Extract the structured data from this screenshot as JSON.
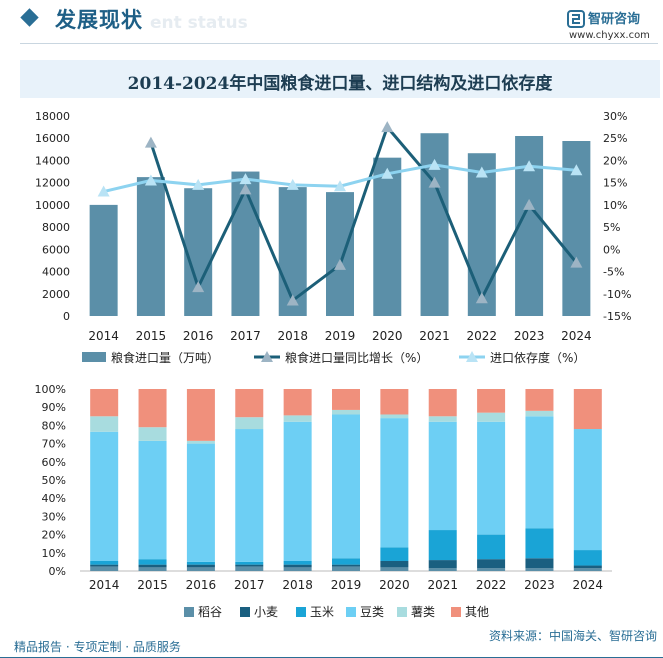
{
  "header": {
    "title": "发展现状",
    "ghost_text": "ent status"
  },
  "brand": {
    "name": "智研咨询",
    "url": "www.chyxx.com",
    "color": "#2a6e95"
  },
  "chart_title": "2014-2024年中国粮食进口量、进口结构及进口依存度",
  "footer": {
    "left": "精品报告 · 专项定制 · 品质服务",
    "right": "资料来源：中国海关、智研咨询"
  },
  "chart_data": [
    {
      "type": "bar",
      "categories": [
        "2014",
        "2015",
        "2016",
        "2017",
        "2018",
        "2019",
        "2020",
        "2021",
        "2022",
        "2023",
        "2024"
      ],
      "series": [
        {
          "name": "粮食进口量（万吨）",
          "type": "bar",
          "axis": "left",
          "color": "#5b8fa8",
          "values": [
            10000,
            12500,
            11500,
            13000,
            11600,
            11150,
            14250,
            16450,
            14650,
            16200,
            15750
          ]
        },
        {
          "name": "粮食进口量同比增长（%）",
          "type": "line",
          "axis": "right",
          "color": "#1c5f78",
          "marker_color": "#9db4c4",
          "values": [
            null,
            24,
            -8.5,
            13.5,
            -11.5,
            -3.5,
            27.5,
            15,
            -11,
            10,
            -3
          ]
        },
        {
          "name": "进口依存度（%）",
          "type": "line",
          "axis": "right",
          "color": "#8dd3f0",
          "marker_color": "#b9e3f5",
          "values": [
            13,
            15.5,
            14.5,
            15.8,
            14.5,
            14.2,
            17,
            19,
            17.3,
            18.7,
            17.8
          ]
        }
      ],
      "y_left": {
        "ylim": [
          0,
          18000
        ],
        "ticks": [
          "0",
          "2000",
          "4000",
          "6000",
          "8000",
          "10000",
          "12000",
          "14000",
          "16000",
          "18000"
        ]
      },
      "y_right": {
        "ylim": [
          -15,
          30
        ],
        "ticks": [
          "-15%",
          "-10%",
          "-5%",
          "0%",
          "5%",
          "10%",
          "15%",
          "20%",
          "25%",
          "30%"
        ]
      },
      "legend_position": "bottom",
      "grid": false
    },
    {
      "type": "bar",
      "stacked": true,
      "categories": [
        "2014",
        "2015",
        "2016",
        "2017",
        "2018",
        "2019",
        "2020",
        "2021",
        "2022",
        "2023",
        "2024"
      ],
      "series": [
        {
          "name": "稻谷",
          "color": "#5b8fa8",
          "values": [
            2.5,
            2,
            2,
            2.5,
            2,
            2.5,
            2,
            1.5,
            1.5,
            1.5,
            1.5
          ]
        },
        {
          "name": "小麦",
          "color": "#1a5f80",
          "values": [
            1,
            1.5,
            1.5,
            1,
            1.5,
            1,
            3.5,
            4.5,
            5,
            5.5,
            1.5
          ]
        },
        {
          "name": "玉米",
          "color": "#1aa4d6",
          "values": [
            2,
            3,
            1.5,
            1.5,
            2,
            3.5,
            7.5,
            16.5,
            13.5,
            16.5,
            8.5
          ]
        },
        {
          "name": "豆类",
          "color": "#6dcff4",
          "values": [
            71,
            65,
            65,
            73,
            76.5,
            79,
            71,
            59.5,
            62,
            61.5,
            66.5
          ]
        },
        {
          "name": "薯类",
          "color": "#a8dcdf",
          "values": [
            8.5,
            7.5,
            1.5,
            6.5,
            3.5,
            2.5,
            2,
            3,
            5,
            3,
            0
          ]
        },
        {
          "name": "其他",
          "color": "#f0907c",
          "values": [
            15,
            21,
            28.5,
            15.5,
            14.5,
            11.5,
            14,
            15,
            13,
            12,
            22
          ]
        }
      ],
      "y_ticks": [
        "0%",
        "10%",
        "20%",
        "30%",
        "40%",
        "50%",
        "60%",
        "70%",
        "80%",
        "90%",
        "100%"
      ],
      "ylim": [
        0,
        100
      ],
      "legend_position": "bottom",
      "grid": false
    }
  ]
}
